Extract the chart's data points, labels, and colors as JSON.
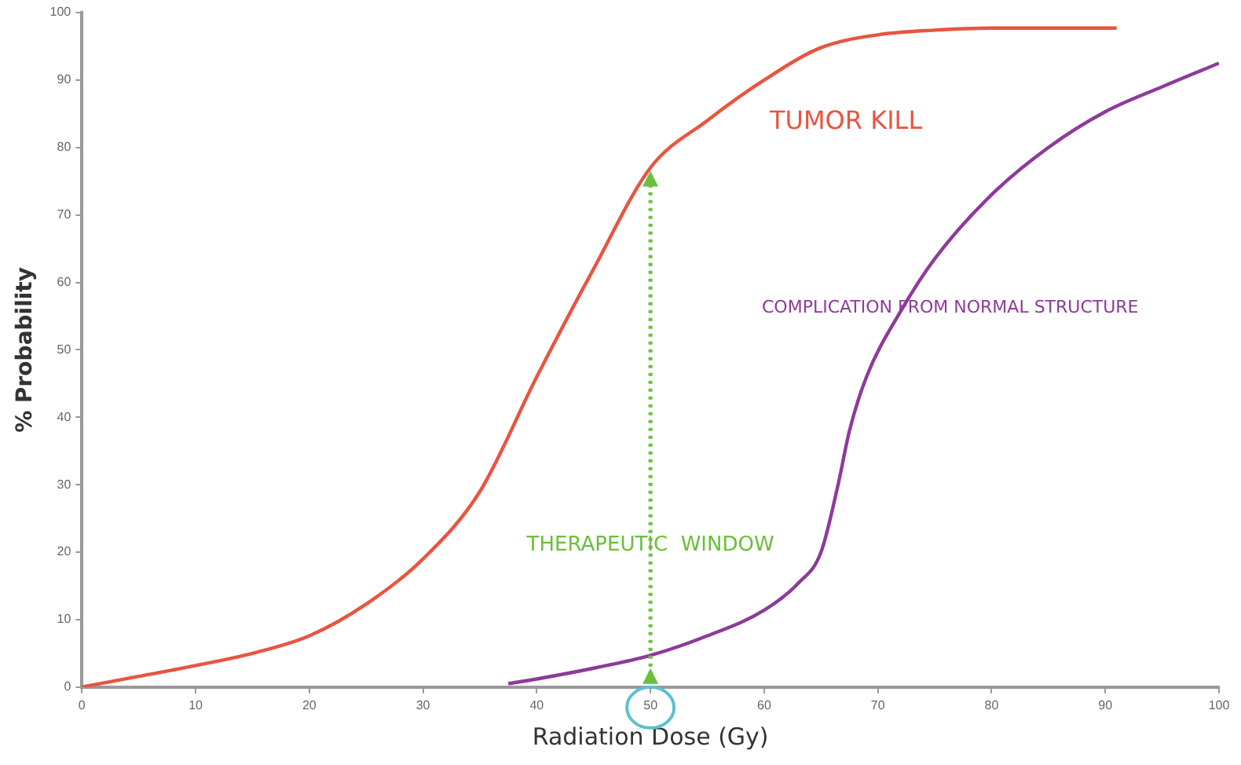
{
  "chart_data": {
    "type": "line",
    "xlabel": "Radiation Dose (Gy)",
    "ylabel": "% Probability",
    "series": [
      {
        "name": "TUMOR KILL",
        "color": "#e8553f",
        "x": [
          0,
          5,
          10,
          15,
          20,
          25,
          30,
          35,
          40,
          45,
          50,
          55,
          60,
          65,
          70,
          75,
          80,
          85,
          91
        ],
        "values": [
          0,
          1.6,
          3.2,
          5,
          7.6,
          12.3,
          19,
          29,
          46,
          62,
          77,
          84,
          90,
          94.8,
          96.7,
          97.4,
          97.7,
          97.7,
          97.7
        ]
      },
      {
        "name": "COMPLICATION FROM NORMAL STRUCTURE",
        "color": "#8e3a9b",
        "x": [
          37.5,
          40,
          45,
          50,
          55,
          60,
          63,
          65,
          66.5,
          67.5,
          69,
          72,
          75,
          80,
          85,
          90,
          95,
          100
        ],
        "values": [
          0.5,
          1.2,
          2.8,
          4.7,
          7.6,
          11.4,
          15.4,
          20,
          30,
          38,
          46,
          55.7,
          63.5,
          73,
          80,
          85.3,
          89,
          92.5
        ]
      }
    ],
    "ref_lines": [
      {
        "axis": "x",
        "value": 50,
        "label": "THERAPEUTIC  WINDOW",
        "color": "#6bbf3a",
        "line_style": "dotted"
      }
    ],
    "xlim": [
      0,
      100
    ],
    "xticks": [
      0,
      10,
      20,
      30,
      40,
      50,
      60,
      70,
      80,
      90,
      100
    ],
    "ylim": [
      0,
      100
    ],
    "yticks": [
      0,
      10,
      20,
      30,
      40,
      50,
      60,
      70,
      80,
      90,
      100
    ],
    "grid": false,
    "legend": false,
    "marker": "none",
    "line_style": "solid"
  }
}
